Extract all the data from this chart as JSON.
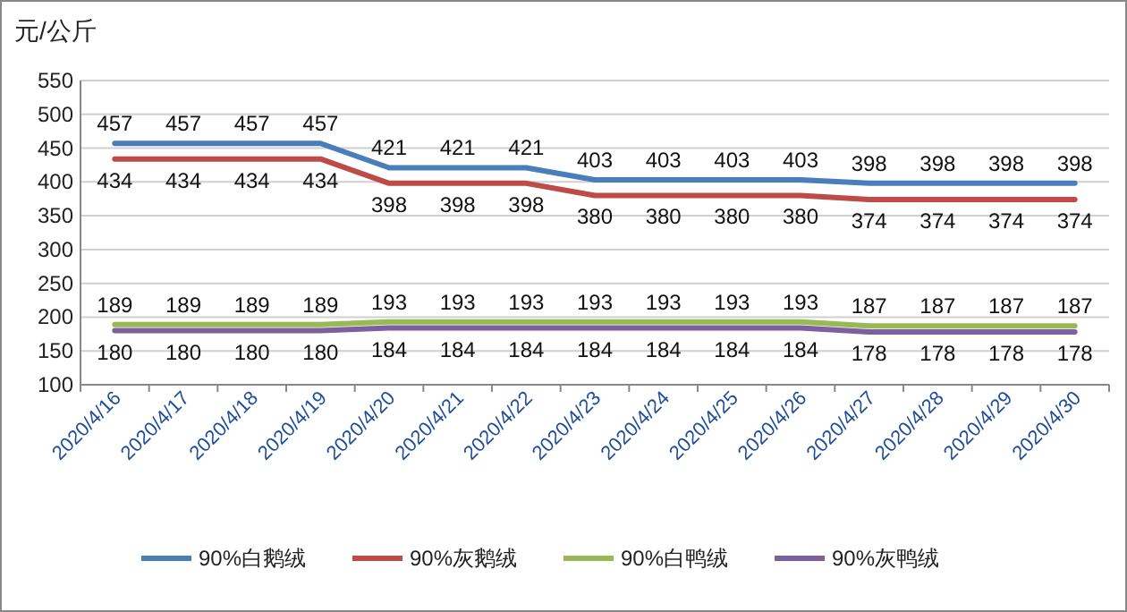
{
  "chart_data": {
    "type": "line",
    "ylabel": "元/公斤",
    "categories": [
      "2020/4/16",
      "2020/4/17",
      "2020/4/18",
      "2020/4/19",
      "2020/4/20",
      "2020/4/21",
      "2020/4/22",
      "2020/4/23",
      "2020/4/24",
      "2020/4/25",
      "2020/4/26",
      "2020/4/27",
      "2020/4/28",
      "2020/4/29",
      "2020/4/30"
    ],
    "series": [
      {
        "name": "90%白鹅绒",
        "color": "#4a7ebb",
        "values": [
          457,
          457,
          457,
          457,
          421,
          421,
          421,
          403,
          403,
          403,
          403,
          398,
          398,
          398,
          398
        ]
      },
      {
        "name": "90%灰鹅绒",
        "color": "#be4b48",
        "values": [
          434,
          434,
          434,
          434,
          398,
          398,
          398,
          380,
          380,
          380,
          380,
          374,
          374,
          374,
          374
        ]
      },
      {
        "name": "90%白鸭绒",
        "color": "#98b954",
        "values": [
          189,
          189,
          189,
          189,
          193,
          193,
          193,
          193,
          193,
          193,
          193,
          187,
          187,
          187,
          187
        ]
      },
      {
        "name": "90%灰鸭绒",
        "color": "#7d60a0",
        "values": [
          180,
          180,
          180,
          180,
          184,
          184,
          184,
          184,
          184,
          184,
          184,
          178,
          178,
          178,
          178
        ]
      }
    ],
    "ylim": [
      100,
      550
    ],
    "yticks": [
      100,
      150,
      200,
      250,
      300,
      350,
      400,
      450,
      500,
      550
    ],
    "grid": "y",
    "legend": "bottom",
    "data_labels": true,
    "marker": "none",
    "line_style": "solid"
  }
}
